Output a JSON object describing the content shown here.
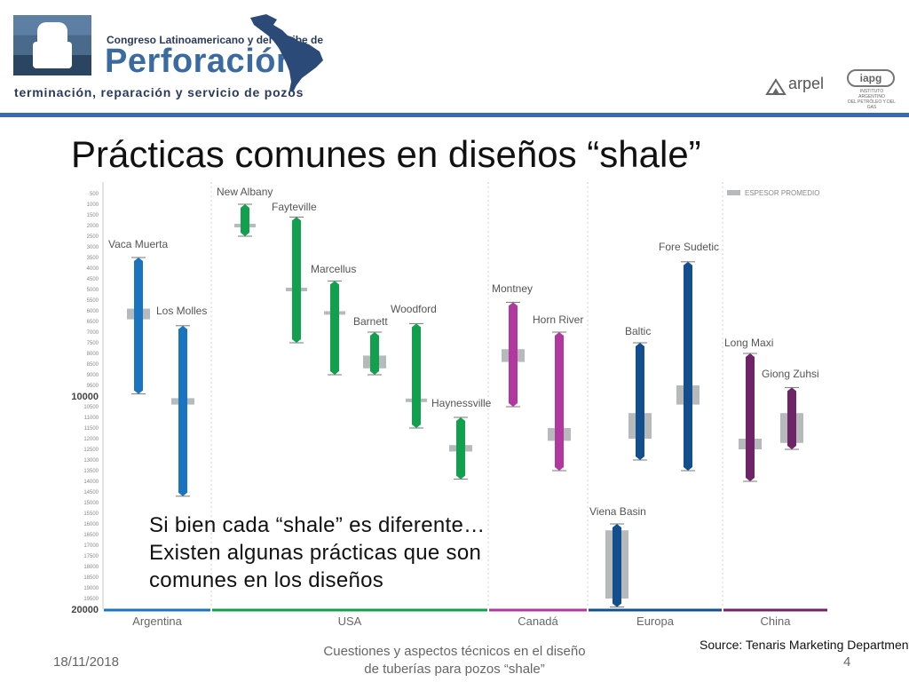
{
  "header": {
    "congress_line": "Congreso Latinoamericano y del Caribe de",
    "brand": "Perforación",
    "subtitle": "terminación, reparación y servicio de pozos",
    "arpel_label": "arpel",
    "iapg_label": "iapg",
    "iapg_caption_1": "INSTITUTO ARGENTINO",
    "iapg_caption_2": "DEL PETRÓLEO Y DEL GAS"
  },
  "slide": {
    "title": "Prácticas comunes en diseños “shale”",
    "overlay_lines": [
      "Si bien cada “shale” es diferente…",
      "Existen algunas prácticas que son",
      "comunes en los diseños"
    ],
    "source": "Source: Tenaris Marketing Department",
    "footer_date": "18/11/2018",
    "footer_center_1": "Cuestiones y aspectos técnicos en el diseño",
    "footer_center_2": "de tuberías para pozos “shale”",
    "page_number": "4"
  },
  "colors": {
    "argentina": "#1b74c0",
    "usa": "#13a04e",
    "canada": "#b0389e",
    "europa": "#134f8c",
    "china": "#6e2466",
    "thickness": "#b6babd",
    "header_blue": "#3a6ab0"
  },
  "chart_data": {
    "type": "range-bar",
    "ylim": [
      500,
      20000
    ],
    "y_inverted": true,
    "ytick_labels": [
      "500",
      "1000",
      "1500",
      "2000",
      "2500",
      "3000",
      "3500",
      "4000",
      "4500",
      "5000",
      "5500",
      "6000",
      "6500",
      "7000",
      "7500",
      "8000",
      "8500",
      "9000",
      "9500",
      "10000",
      "10500",
      "11000",
      "11500",
      "12000",
      "12500",
      "13000",
      "13500",
      "14000",
      "14500",
      "15000",
      "15500",
      "16000",
      "16500",
      "17000",
      "17500",
      "18000",
      "18500",
      "19000",
      "19500",
      "20000"
    ],
    "ytick_major": [
      "10000",
      "20000"
    ],
    "legend": {
      "label": "ESPESOR PROMEDIO",
      "position": "top-right"
    },
    "groups": [
      {
        "name": "Argentina",
        "color_key": "argentina"
      },
      {
        "name": "USA",
        "color_key": "usa"
      },
      {
        "name": "Canadá",
        "color_key": "canada"
      },
      {
        "name": "Europa",
        "color_key": "europa"
      },
      {
        "name": "China",
        "color_key": "china"
      }
    ],
    "series": [
      {
        "name": "Vaca Muerta",
        "group": "Argentina",
        "depth_top": 3500,
        "depth_bottom": 9900,
        "thickness_top": 5900,
        "thickness_bottom": 6400
      },
      {
        "name": "Los Molles",
        "group": "Argentina",
        "depth_top": 6700,
        "depth_bottom": 14700,
        "thickness_top": 10100,
        "thickness_bottom": 10400
      },
      {
        "name": "New Albany",
        "group": "USA",
        "depth_top": 1000,
        "depth_bottom": 2500,
        "thickness_top": 1900,
        "thickness_bottom": 2100
      },
      {
        "name": "Fayteville",
        "group": "USA",
        "depth_top": 1600,
        "depth_bottom": 7500,
        "thickness_top": 4900,
        "thickness_bottom": 5100
      },
      {
        "name": "Marcellus",
        "group": "USA",
        "depth_top": 4600,
        "depth_bottom": 9000,
        "thickness_top": 6000,
        "thickness_bottom": 6200
      },
      {
        "name": "Barnett",
        "group": "USA",
        "depth_top": 7000,
        "depth_bottom": 9000,
        "thickness_top": 8100,
        "thickness_bottom": 8700
      },
      {
        "name": "Woodford",
        "group": "USA",
        "depth_top": 6600,
        "depth_bottom": 11500,
        "thickness_top": 10100,
        "thickness_bottom": 10300
      },
      {
        "name": "Haynessville",
        "group": "USA",
        "depth_top": 11000,
        "depth_bottom": 13900,
        "thickness_top": 12300,
        "thickness_bottom": 12600
      },
      {
        "name": "Montney",
        "group": "Canadá",
        "depth_top": 5600,
        "depth_bottom": 10500,
        "thickness_top": 7800,
        "thickness_bottom": 8400
      },
      {
        "name": "Horn River",
        "group": "Canadá",
        "depth_top": 7000,
        "depth_bottom": 13500,
        "thickness_top": 11500,
        "thickness_bottom": 12100
      },
      {
        "name": "Baltic",
        "group": "Europa",
        "depth_top": 7500,
        "depth_bottom": 13000,
        "thickness_top": 10800,
        "thickness_bottom": 12000
      },
      {
        "name": "Fore Sudetic",
        "group": "Europa",
        "depth_top": 3700,
        "depth_bottom": 13500,
        "thickness_top": 9500,
        "thickness_bottom": 10400
      },
      {
        "name": "Viena Basin",
        "group": "Europa",
        "depth_top": 16000,
        "depth_bottom": 19900,
        "thickness_top": 16300,
        "thickness_bottom": 19500
      },
      {
        "name": "Long Maxi",
        "group": "China",
        "depth_top": 8000,
        "depth_bottom": 14000,
        "thickness_top": 12000,
        "thickness_bottom": 12500
      },
      {
        "name": "Giong Zuhsi",
        "group": "China",
        "depth_top": 9600,
        "depth_bottom": 12500,
        "thickness_top": 10800,
        "thickness_bottom": 12200
      }
    ]
  }
}
